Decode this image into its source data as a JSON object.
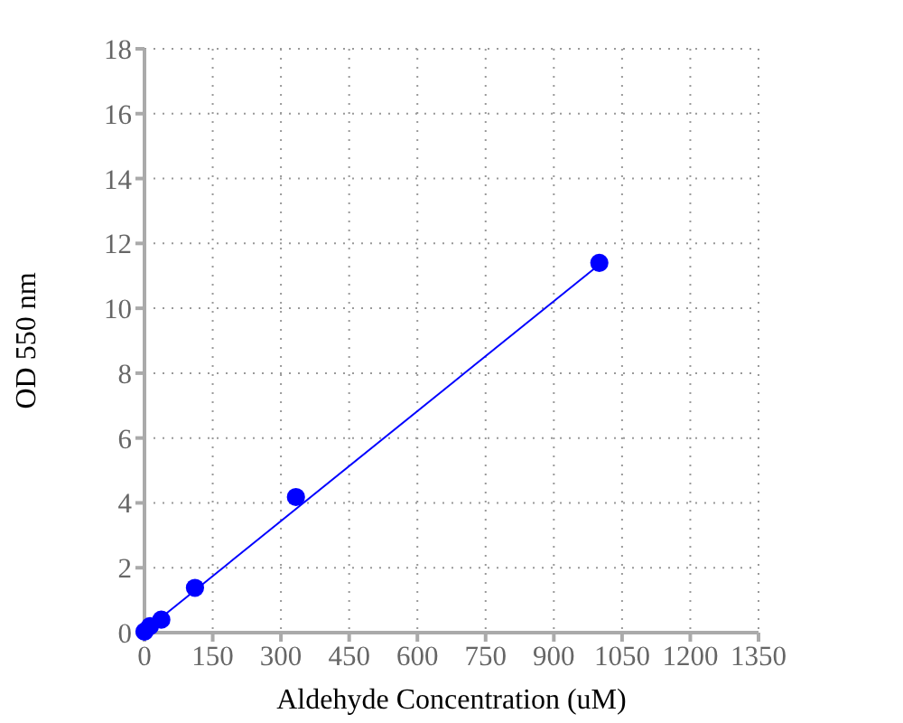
{
  "chart_data": {
    "type": "scatter",
    "xlabel": "Aldehyde Concentration (uM)",
    "ylabel": "OD 550 nm",
    "xlim": [
      0,
      1350
    ],
    "xticks": [
      0,
      150,
      300,
      450,
      600,
      750,
      900,
      1050,
      1200,
      1350
    ],
    "ylim": [
      0,
      18
    ],
    "yticks": [
      0,
      2,
      4,
      6,
      8,
      10,
      12,
      14,
      16,
      18
    ],
    "grid": true,
    "marker": "circle",
    "series": [
      {
        "color": "#0000ff",
        "x": [
          0,
          12,
          37,
          111,
          333,
          1000
        ],
        "values": [
          0.03,
          0.2,
          0.4,
          1.38,
          4.18,
          11.4
        ]
      },
      {
        "type": "line",
        "color": "#0000ff",
        "marker": "none",
        "line_style": "solid",
        "x": [
          0,
          1000
        ],
        "values": [
          0.05,
          11.35
        ]
      }
    ]
  }
}
